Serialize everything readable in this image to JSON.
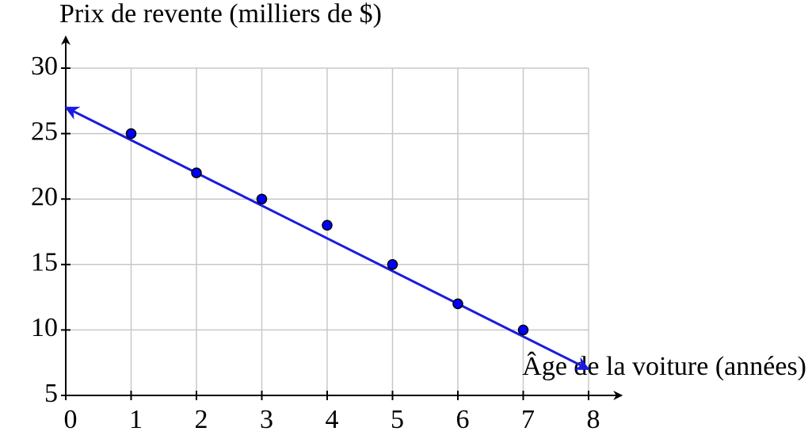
{
  "chart_data": {
    "type": "scatter",
    "title": "Prix de revente (milliers de $)",
    "x_label": "Âge de la voiture (années)",
    "series": [
      {
        "x": [
          1,
          2,
          3,
          4,
          5,
          6,
          7
        ],
        "values": [
          25,
          22,
          20,
          18,
          15,
          12,
          10
        ],
        "color": "#0000ff"
      }
    ],
    "trend_line": {
      "x": [
        0,
        8
      ],
      "y": [
        27,
        7
      ],
      "color": "#1a1ae0"
    },
    "xlim": [
      0,
      8
    ],
    "xticks": [
      0,
      1,
      2,
      3,
      4,
      5,
      6,
      7,
      8
    ],
    "ylim": [
      5,
      30
    ],
    "yticks": [
      5,
      10,
      15,
      20,
      25,
      30
    ],
    "grid": true
  }
}
